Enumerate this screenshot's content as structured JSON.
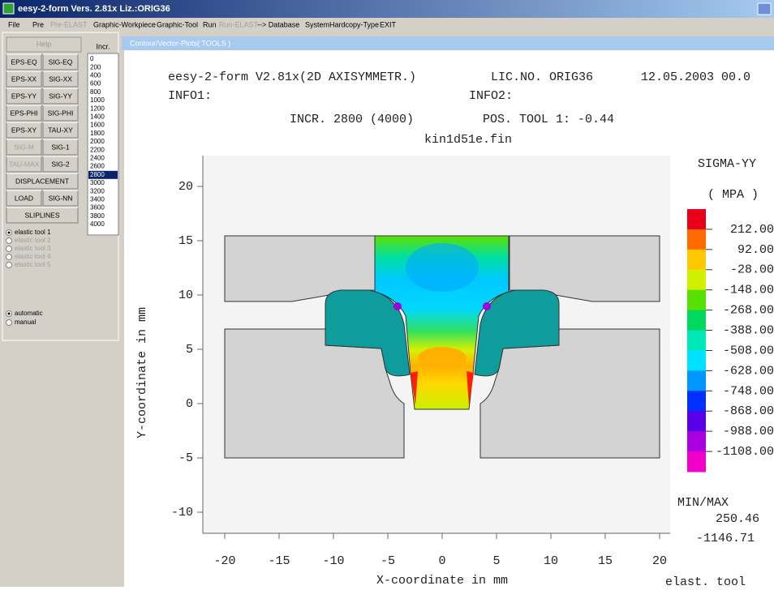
{
  "title_bar": {
    "title": "eesy-2-form Vers. 2.81x  Liz.:ORIG36"
  },
  "menu": [
    {
      "label": "File",
      "enabled": true
    },
    {
      "label": "Pre",
      "enabled": true
    },
    {
      "label": "Pre-ELAST",
      "enabled": false
    },
    {
      "label": "Graphic-Workpiece",
      "enabled": true
    },
    {
      "label": "Graphic-Tool",
      "enabled": true
    },
    {
      "label": "Run",
      "enabled": true
    },
    {
      "label": "Run-ELAST",
      "enabled": false
    },
    {
      "label": "--> Database",
      "enabled": true
    },
    {
      "label": "System",
      "enabled": true
    },
    {
      "label": "Hardcopy-Type",
      "enabled": true
    },
    {
      "label": "EXIT",
      "enabled": true
    }
  ],
  "left_panel": {
    "help": "Help",
    "incr_label": "Incr.",
    "buttons": [
      [
        {
          "label": "EPS-EQ",
          "enabled": true
        },
        {
          "label": "SIG-EQ",
          "enabled": true
        }
      ],
      [
        {
          "label": "EPS-XX",
          "enabled": true
        },
        {
          "label": "SIG-XX",
          "enabled": true
        }
      ],
      [
        {
          "label": "EPS-YY",
          "enabled": true
        },
        {
          "label": "SIG-YY",
          "enabled": true
        }
      ],
      [
        {
          "label": "EPS-PHI",
          "enabled": true
        },
        {
          "label": "SIG-PHI",
          "enabled": true
        }
      ],
      [
        {
          "label": "EPS-XY",
          "enabled": true
        },
        {
          "label": "TAU-XY",
          "enabled": true
        }
      ],
      [
        {
          "label": "SIG-M",
          "enabled": false
        },
        {
          "label": "SIG-1",
          "enabled": true
        }
      ],
      [
        {
          "label": "TAU-MAX",
          "enabled": false
        },
        {
          "label": "SIG-2",
          "enabled": true
        }
      ],
      [
        {
          "label": "DISPLACEMENT",
          "enabled": true
        }
      ],
      [
        {
          "label": "LOAD",
          "enabled": true
        },
        {
          "label": "SIG-NN",
          "enabled": true
        }
      ],
      [
        {
          "label": "SLIPLINES",
          "enabled": true
        }
      ]
    ],
    "increments": [
      "0",
      "200",
      "400",
      "600",
      "800",
      "1000",
      "1200",
      "1400",
      "1600",
      "1800",
      "2000",
      "2200",
      "2400",
      "2600",
      "2800",
      "3000",
      "3200",
      "3400",
      "3600",
      "3800",
      "4000"
    ],
    "selected_increment": "2800",
    "tools": [
      {
        "label": "elastic tool 1",
        "enabled": true,
        "checked": true
      },
      {
        "label": "elastic tool 2",
        "enabled": false,
        "checked": false
      },
      {
        "label": "elastic tool 3",
        "enabled": false,
        "checked": false
      },
      {
        "label": "elastic tool 4",
        "enabled": false,
        "checked": false
      },
      {
        "label": "elastic tool 5",
        "enabled": false,
        "checked": false
      }
    ],
    "modes": [
      {
        "label": "automatic",
        "checked": true
      },
      {
        "label": "manual",
        "checked": false
      }
    ]
  },
  "plot_window": {
    "title": "Contour/Vector-Plots( TOOLS )",
    "header": {
      "program": "eesy-2-form V2.81x(2D AXISYMMETR.)",
      "license": "LIC.NO. ORIG36",
      "date": "12.05.2003  00.0",
      "info1": "INFO1:",
      "info2": "INFO2:",
      "increment": "INCR. 2800 (4000)",
      "position": "POS. TOOL   1:   -0.44",
      "file": "kin1d51e.fin"
    },
    "x_label": "X-coordinate in mm",
    "y_label": "Y-coordinate in mm",
    "x_ticks": [
      -20,
      -15,
      -10,
      -5,
      0,
      5,
      10,
      15,
      20
    ],
    "y_ticks": [
      20,
      15,
      10,
      5,
      0,
      -5,
      -10
    ],
    "legend": {
      "title": "SIGMA-YY",
      "unit": "( MPA  )",
      "levels": [
        "212.00",
        "92.00",
        "-28.00",
        "-148.00",
        "-268.00",
        "-388.00",
        "-508.00",
        "-628.00",
        "-748.00",
        "-868.00",
        "-988.00",
        "-1108.00"
      ]
    },
    "min_max_label": "MIN/MAX",
    "max": "250.46",
    "min": "-1146.71",
    "footer": "elast. tool"
  }
}
